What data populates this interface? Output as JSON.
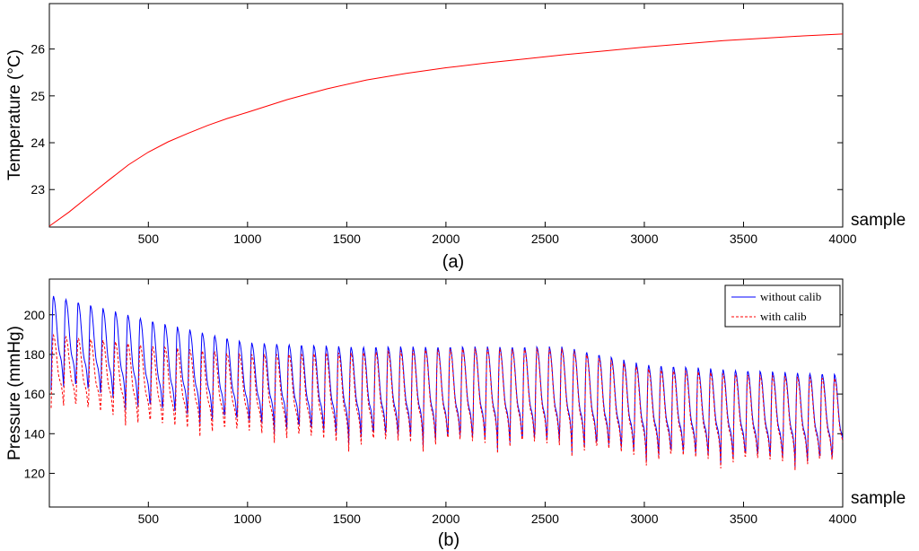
{
  "colors": {
    "red": "#ff0000",
    "blue": "#0000ff",
    "axis": "#000000"
  },
  "chart_data": [
    {
      "type": "line",
      "caption": "(a)",
      "xlabel": "sample",
      "ylabel": "Temperature (°C)",
      "xlim": [
        1,
        4000
      ],
      "ylim": [
        22.2,
        26.97
      ],
      "xticks": [
        500,
        1000,
        1500,
        2000,
        2500,
        3000,
        3500,
        4000
      ],
      "yticks": [
        23,
        24,
        25,
        26
      ],
      "series": [
        {
          "color": "#ff0000",
          "x": [
            1,
            100,
            200,
            300,
            400,
            500,
            600,
            700,
            800,
            900,
            1000,
            1200,
            1400,
            1600,
            1800,
            2000,
            2200,
            2400,
            2600,
            2800,
            3000,
            3200,
            3400,
            3600,
            3800,
            4000
          ],
          "y": [
            22.22,
            22.52,
            22.86,
            23.2,
            23.53,
            23.8,
            24.02,
            24.2,
            24.37,
            24.52,
            24.65,
            24.92,
            25.15,
            25.34,
            25.48,
            25.6,
            25.7,
            25.79,
            25.88,
            25.96,
            26.04,
            26.11,
            26.18,
            26.23,
            26.28,
            26.32
          ]
        }
      ]
    },
    {
      "type": "line",
      "caption": "(b)",
      "xlabel": "sample",
      "ylabel": "Pressure (mmHg)",
      "xlim": [
        1,
        4000
      ],
      "ylim": [
        103,
        218
      ],
      "xticks": [
        500,
        1000,
        1500,
        2000,
        2500,
        3000,
        3500,
        4000
      ],
      "yticks": [
        120,
        140,
        160,
        180,
        200
      ],
      "legend_position": "top-right",
      "series": [
        {
          "name": "without calib",
          "color": "#0000ff",
          "style": "solid",
          "period": 62.5,
          "peak_x": [
            10,
            560,
            1000,
            1500,
            2000,
            2600,
            3000,
            3500,
            4000
          ],
          "peak_y": [
            210,
            196,
            186,
            184,
            184,
            184,
            175,
            172,
            170
          ],
          "trough_x": [
            10,
            560,
            1000,
            1500,
            2000,
            2600,
            3000,
            3500,
            4000
          ],
          "trough_y": [
            162,
            147,
            142,
            135,
            133,
            131,
            126,
            124,
            122
          ]
        },
        {
          "name": "with calib",
          "color": "#ff0000",
          "style": "dashed",
          "period": 62.5,
          "peak_x": [
            10,
            560,
            1000,
            1500,
            2000,
            2600,
            3000,
            3500,
            4000
          ],
          "peak_y": [
            190,
            184,
            180,
            181,
            183,
            183,
            173,
            170,
            168
          ],
          "trough_x": [
            10,
            560,
            1000,
            1500,
            2000,
            2600,
            3000,
            3500,
            4000
          ],
          "trough_y": [
            153,
            140,
            137,
            131,
            131,
            129,
            124,
            122,
            121
          ]
        }
      ]
    }
  ]
}
